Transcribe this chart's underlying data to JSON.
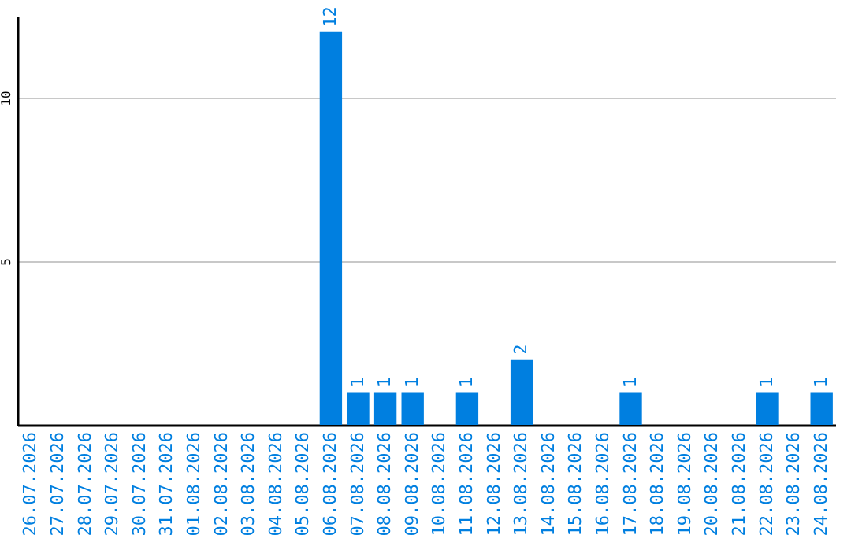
{
  "chart_data": {
    "type": "bar",
    "categories": [
      "26.07.2026",
      "27.07.2026",
      "28.07.2026",
      "29.07.2026",
      "30.07.2026",
      "31.07.2026",
      "01.08.2026",
      "02.08.2026",
      "03.08.2026",
      "04.08.2026",
      "05.08.2026",
      "06.08.2026",
      "07.08.2026",
      "08.08.2026",
      "09.08.2026",
      "10.08.2026",
      "11.08.2026",
      "12.08.2026",
      "13.08.2026",
      "14.08.2026",
      "15.08.2026",
      "16.08.2026",
      "17.08.2026",
      "18.08.2026",
      "19.08.2026",
      "20.08.2026",
      "21.08.2026",
      "22.08.2026",
      "23.08.2026",
      "24.08.2026"
    ],
    "values": [
      0,
      0,
      0,
      0,
      0,
      0,
      0,
      0,
      0,
      0,
      0,
      12,
      1,
      1,
      1,
      0,
      1,
      0,
      2,
      0,
      0,
      0,
      1,
      0,
      0,
      0,
      0,
      1,
      0,
      1
    ],
    "value_labels": [
      null,
      null,
      null,
      null,
      null,
      null,
      null,
      null,
      null,
      null,
      null,
      "12",
      "1",
      "1",
      "1",
      null,
      "1",
      null,
      "2",
      null,
      null,
      null,
      "1",
      null,
      null,
      null,
      null,
      "1",
      null,
      "1"
    ],
    "color": "#007fe0",
    "ylim": [
      0,
      12.5
    ],
    "yticks": [
      5,
      10
    ],
    "grid": "y"
  }
}
